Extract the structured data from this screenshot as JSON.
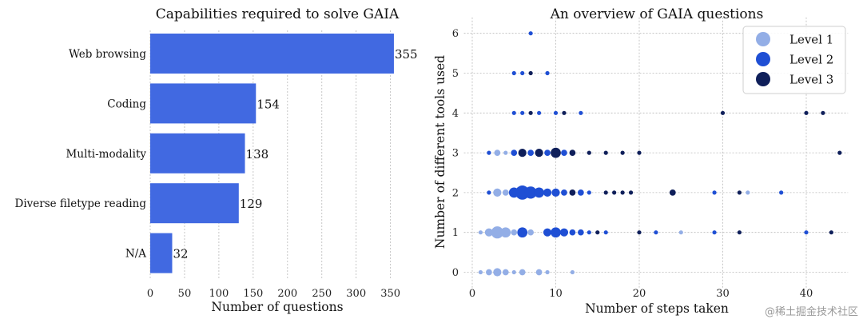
{
  "watermark": "@稀土掘金技术社区",
  "legend_colors": {
    "Level 1": "#93aee6",
    "Level 2": "#1f4fd4",
    "Level 3": "#0f1f5a"
  },
  "chart_data": [
    {
      "type": "bar",
      "orientation": "horizontal",
      "title": "Capabilities required to solve GAIA",
      "xlabel": "Number of questions",
      "ylabel": "",
      "xlim": [
        0,
        360
      ],
      "xticks": [
        0,
        50,
        100,
        150,
        200,
        250,
        300,
        350
      ],
      "grid": true,
      "color": "#4169e1",
      "categories": [
        "Web browsing",
        "Coding",
        "Multi-modality",
        "Diverse filetype reading",
        "N/A"
      ],
      "values": [
        355,
        154,
        138,
        129,
        32
      ]
    },
    {
      "type": "scatter",
      "title": "An overview of GAIA questions",
      "xlabel": "Number of steps taken",
      "ylabel": "Number of different tools used",
      "xlim": [
        -1,
        45
      ],
      "ylim": [
        -0.4,
        6.4
      ],
      "xticks": [
        0,
        10,
        20,
        30,
        40
      ],
      "yticks": [
        0,
        1,
        2,
        3,
        4,
        5,
        6
      ],
      "grid": true,
      "legend_position": "top-right",
      "marker_size": "number of questions",
      "series": [
        {
          "name": "Level 1",
          "color": "#93aee6",
          "points": [
            {
              "x": 1,
              "y": 0,
              "n": 1
            },
            {
              "x": 2,
              "y": 0,
              "n": 2
            },
            {
              "x": 3,
              "y": 0,
              "n": 3
            },
            {
              "x": 4,
              "y": 0,
              "n": 2
            },
            {
              "x": 5,
              "y": 0,
              "n": 1
            },
            {
              "x": 6,
              "y": 0,
              "n": 2
            },
            {
              "x": 8,
              "y": 0,
              "n": 2
            },
            {
              "x": 9,
              "y": 0,
              "n": 1
            },
            {
              "x": 12,
              "y": 0,
              "n": 1
            },
            {
              "x": 1,
              "y": 1,
              "n": 1
            },
            {
              "x": 2,
              "y": 1,
              "n": 3
            },
            {
              "x": 3,
              "y": 1,
              "n": 5
            },
            {
              "x": 4,
              "y": 1,
              "n": 4
            },
            {
              "x": 5,
              "y": 1,
              "n": 2
            },
            {
              "x": 7,
              "y": 1,
              "n": 2
            },
            {
              "x": 25,
              "y": 1,
              "n": 1
            },
            {
              "x": 3,
              "y": 2,
              "n": 3
            },
            {
              "x": 4,
              "y": 2,
              "n": 2
            },
            {
              "x": 5,
              "y": 2,
              "n": 1
            },
            {
              "x": 33,
              "y": 2,
              "n": 1
            },
            {
              "x": 3,
              "y": 3,
              "n": 2
            },
            {
              "x": 4,
              "y": 3,
              "n": 1
            }
          ]
        },
        {
          "name": "Level 2",
          "color": "#1f4fd4",
          "points": [
            {
              "x": 6,
              "y": 1,
              "n": 4
            },
            {
              "x": 9,
              "y": 1,
              "n": 3
            },
            {
              "x": 10,
              "y": 1,
              "n": 4
            },
            {
              "x": 11,
              "y": 1,
              "n": 3
            },
            {
              "x": 12,
              "y": 1,
              "n": 2
            },
            {
              "x": 13,
              "y": 1,
              "n": 2
            },
            {
              "x": 14,
              "y": 1,
              "n": 1
            },
            {
              "x": 16,
              "y": 1,
              "n": 1
            },
            {
              "x": 22,
              "y": 1,
              "n": 1
            },
            {
              "x": 29,
              "y": 1,
              "n": 1
            },
            {
              "x": 40,
              "y": 1,
              "n": 1
            },
            {
              "x": 2,
              "y": 2,
              "n": 1
            },
            {
              "x": 5,
              "y": 2,
              "n": 4
            },
            {
              "x": 6,
              "y": 2,
              "n": 6
            },
            {
              "x": 7,
              "y": 2,
              "n": 5
            },
            {
              "x": 8,
              "y": 2,
              "n": 4
            },
            {
              "x": 9,
              "y": 2,
              "n": 3
            },
            {
              "x": 10,
              "y": 2,
              "n": 3
            },
            {
              "x": 11,
              "y": 2,
              "n": 2
            },
            {
              "x": 13,
              "y": 2,
              "n": 2
            },
            {
              "x": 14,
              "y": 2,
              "n": 1
            },
            {
              "x": 29,
              "y": 2,
              "n": 1
            },
            {
              "x": 37,
              "y": 2,
              "n": 1
            },
            {
              "x": 2,
              "y": 3,
              "n": 1
            },
            {
              "x": 5,
              "y": 3,
              "n": 2
            },
            {
              "x": 7,
              "y": 3,
              "n": 2
            },
            {
              "x": 9,
              "y": 3,
              "n": 2
            },
            {
              "x": 11,
              "y": 3,
              "n": 2
            },
            {
              "x": 5,
              "y": 4,
              "n": 1
            },
            {
              "x": 6,
              "y": 4,
              "n": 1
            },
            {
              "x": 8,
              "y": 4,
              "n": 1
            },
            {
              "x": 10,
              "y": 4,
              "n": 1
            },
            {
              "x": 13,
              "y": 4,
              "n": 1
            },
            {
              "x": 5,
              "y": 5,
              "n": 1
            },
            {
              "x": 6,
              "y": 5,
              "n": 1
            },
            {
              "x": 9,
              "y": 5,
              "n": 1
            },
            {
              "x": 7,
              "y": 6,
              "n": 1
            }
          ]
        },
        {
          "name": "Level 3",
          "color": "#0f1f5a",
          "points": [
            {
              "x": 15,
              "y": 1,
              "n": 1
            },
            {
              "x": 20,
              "y": 1,
              "n": 1
            },
            {
              "x": 32,
              "y": 1,
              "n": 1
            },
            {
              "x": 43,
              "y": 1,
              "n": 1
            },
            {
              "x": 12,
              "y": 2,
              "n": 2
            },
            {
              "x": 16,
              "y": 2,
              "n": 1
            },
            {
              "x": 17,
              "y": 2,
              "n": 1
            },
            {
              "x": 18,
              "y": 2,
              "n": 1
            },
            {
              "x": 19,
              "y": 2,
              "n": 1
            },
            {
              "x": 24,
              "y": 2,
              "n": 2
            },
            {
              "x": 32,
              "y": 2,
              "n": 1
            },
            {
              "x": 6,
              "y": 3,
              "n": 3
            },
            {
              "x": 8,
              "y": 3,
              "n": 3
            },
            {
              "x": 10,
              "y": 3,
              "n": 4
            },
            {
              "x": 12,
              "y": 3,
              "n": 2
            },
            {
              "x": 14,
              "y": 3,
              "n": 1
            },
            {
              "x": 16,
              "y": 3,
              "n": 1
            },
            {
              "x": 18,
              "y": 3,
              "n": 1
            },
            {
              "x": 20,
              "y": 3,
              "n": 1
            },
            {
              "x": 44,
              "y": 3,
              "n": 1
            },
            {
              "x": 7,
              "y": 4,
              "n": 1
            },
            {
              "x": 11,
              "y": 4,
              "n": 1
            },
            {
              "x": 30,
              "y": 4,
              "n": 1
            },
            {
              "x": 40,
              "y": 4,
              "n": 1
            },
            {
              "x": 42,
              "y": 4,
              "n": 1
            },
            {
              "x": 7,
              "y": 5,
              "n": 1
            }
          ]
        }
      ]
    }
  ]
}
